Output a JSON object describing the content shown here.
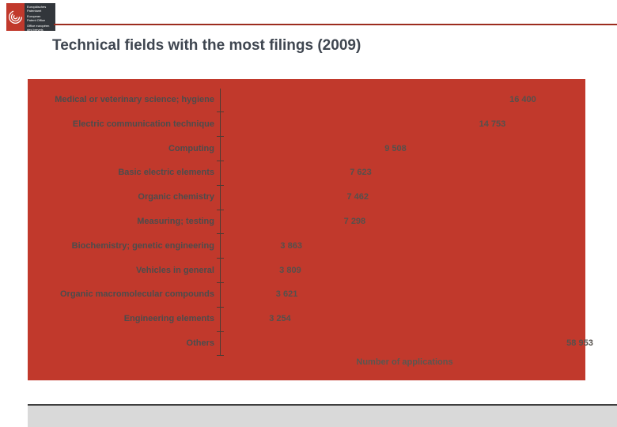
{
  "logo": {
    "groups": [
      {
        "lines": [
          "Europäisches",
          "Patentamt"
        ]
      },
      {
        "lines": [
          "European",
          "Patent Office"
        ]
      },
      {
        "lines": [
          "Office européen",
          "des brevets"
        ]
      }
    ]
  },
  "title": "Technical fields with the most filings (2009)",
  "chart_data": {
    "type": "bar",
    "orientation": "horizontal",
    "title": "Technical fields with the most filings (2009)",
    "xlabel": "Number of applications",
    "ylabel": "",
    "xlim": [
      0,
      20000
    ],
    "grid": false,
    "legend": "none",
    "background_color": "#c1392c",
    "bar_color": "#c1392c",
    "categories": [
      "Medical or veterinary science; hygiene",
      "Electric communication technique",
      "Computing",
      "Basic electric elements",
      "Organic chemistry",
      "Measuring; testing",
      "Biochemistry; genetic engineering",
      "Vehicles in general",
      "Organic macromolecular compounds",
      "Engineering elements",
      "Others"
    ],
    "values": [
      16400,
      14753,
      9508,
      7623,
      7462,
      7298,
      3863,
      3809,
      3621,
      3254,
      58953
    ],
    "value_labels": [
      "16 400",
      "14 753",
      "9 508",
      "7 623",
      "7 462",
      "7 298",
      "3 863",
      "3 809",
      "3 621",
      "3 254",
      "58 953"
    ]
  },
  "colors": {
    "accent_red": "#c1392c",
    "rule_dark_red": "#9c2c1e",
    "title_gray": "#3f4650",
    "label_gray": "#4c4c4c",
    "footer_gray": "#d9d9d9"
  }
}
